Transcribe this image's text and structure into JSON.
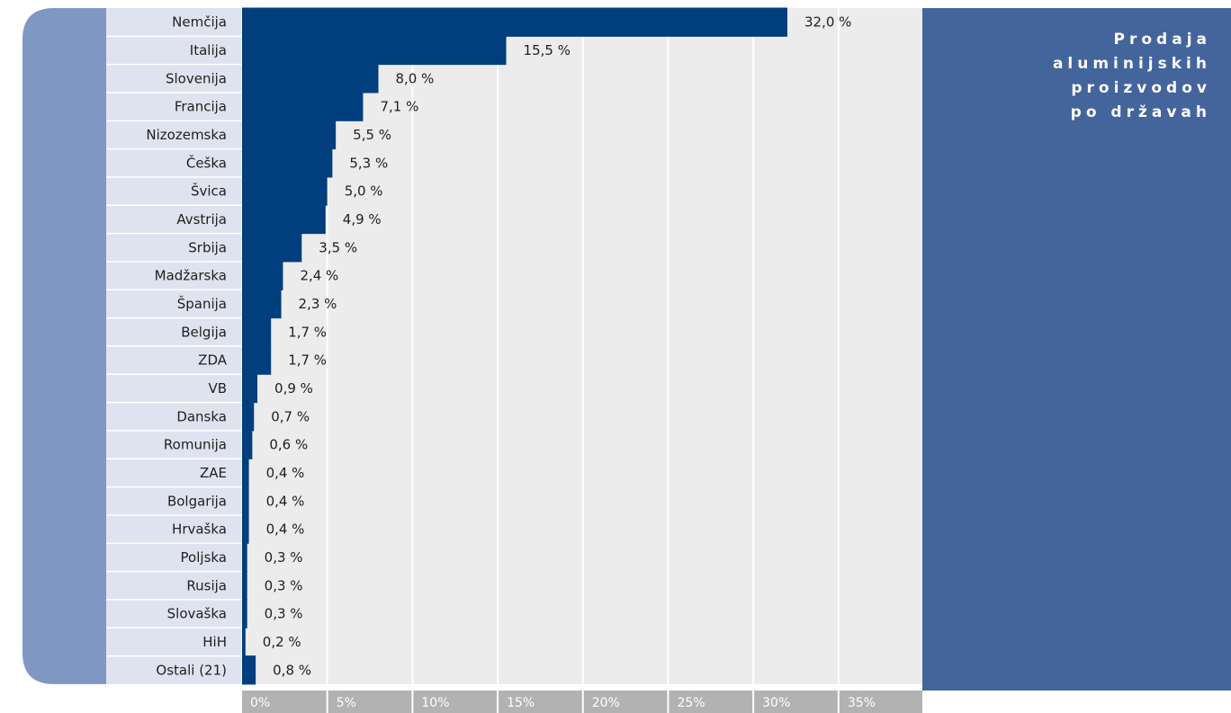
{
  "chart_data": {
    "type": "bar",
    "orientation": "horizontal",
    "title": "Prodaja aluminijskih proizvodov po državah",
    "categories": [
      "Nemčija",
      "Italija",
      "Slovenija",
      "Francija",
      "Nizozemska",
      "Češka",
      "Švica",
      "Avstrija",
      "Srbija",
      "Madžarska",
      "Španija",
      "Belgija",
      "ZDA",
      "VB",
      "Danska",
      "Romunija",
      "ZAE",
      "Bolgarija",
      "Hrvaška",
      "Poljska",
      "Rusija",
      "Slovaška",
      "HiH",
      "Ostali (21)"
    ],
    "values": [
      32.0,
      15.5,
      8.0,
      7.1,
      5.5,
      5.3,
      5.0,
      4.9,
      3.5,
      2.4,
      2.3,
      1.7,
      1.7,
      0.9,
      0.7,
      0.6,
      0.4,
      0.4,
      0.4,
      0.3,
      0.3,
      0.3,
      0.2,
      0.8
    ],
    "value_labels": [
      "32,0 %",
      "15,5 %",
      "8,0 %",
      "7,1 %",
      "5,5 %",
      "5,3 %",
      "5,0 %",
      "4,9 %",
      "3,5 %",
      "2,4 %",
      "2,3 %",
      "1,7 %",
      "1,7 %",
      "0,9 %",
      "0,7 %",
      "0,6 %",
      "0,4 %",
      "0,4 %",
      "0,4 %",
      "0,3 %",
      "0,3 %",
      "0,3 %",
      "0,2 %",
      "0,8 %"
    ],
    "xlim": [
      0,
      40
    ],
    "ticks": [
      0,
      5,
      10,
      15,
      20,
      25,
      30,
      35
    ],
    "tick_labels": [
      "0%",
      "5%",
      "10%",
      "15%",
      "20%",
      "25%",
      "30%",
      "35%"
    ],
    "grid": true,
    "colors": {
      "bar": "#003e7e",
      "plot_bg": "#ececec",
      "label_bg": "#dfe3f0",
      "left_accent": "#8097c4",
      "axis_strip": "#b2b2b2",
      "title_panel": "#44649c"
    }
  }
}
